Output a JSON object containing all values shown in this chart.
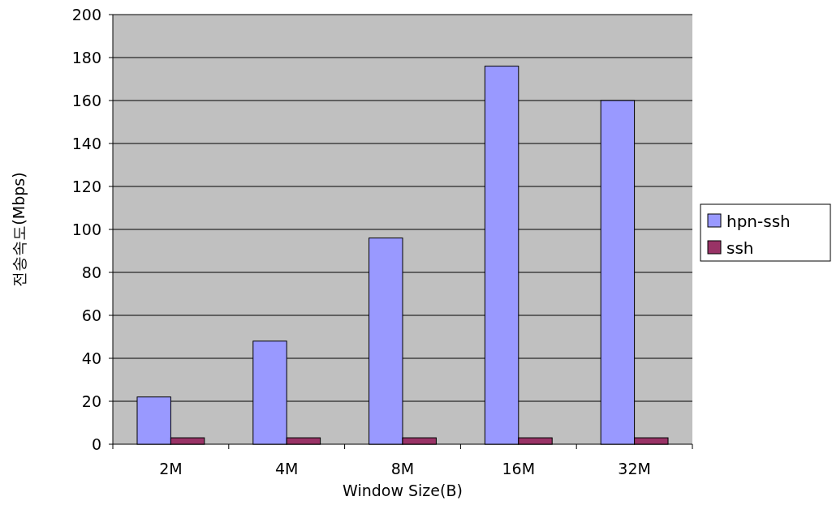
{
  "chart_data": {
    "type": "bar",
    "xlabel": "Window Size(B)",
    "ylabel": "전송속도(Mbps)",
    "categories": [
      "2M",
      "4M",
      "8M",
      "16M",
      "32M"
    ],
    "series": [
      {
        "name": "hpn-ssh",
        "color": "#9999ff",
        "values": [
          22,
          48,
          96,
          176,
          160
        ]
      },
      {
        "name": "ssh",
        "color": "#993366",
        "values": [
          3,
          3,
          3,
          3,
          3
        ]
      }
    ],
    "ylim": [
      0,
      200
    ],
    "yticks": [
      0,
      20,
      40,
      60,
      80,
      100,
      120,
      140,
      160,
      180,
      200
    ],
    "grid": "y",
    "legend": "right"
  }
}
